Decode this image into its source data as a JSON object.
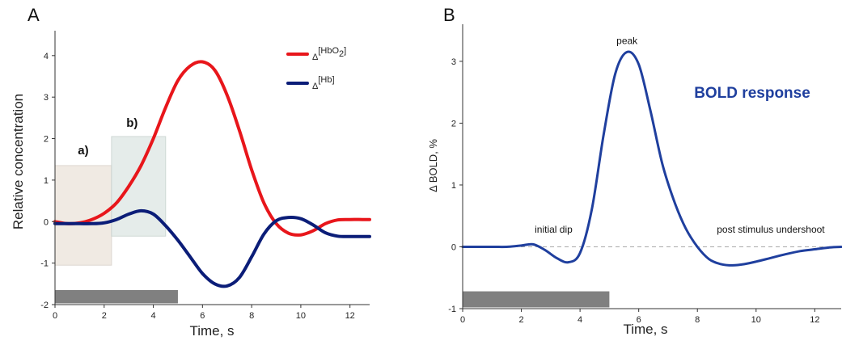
{
  "chart_data": [
    {
      "panel": "A",
      "type": "line",
      "xlabel": "Time, s",
      "ylabel": "Relative concentration",
      "xlim": [
        0,
        12.8
      ],
      "ylim": [
        -2,
        4.6
      ],
      "xticks": [
        0,
        2,
        4,
        6,
        8,
        10,
        12
      ],
      "yticks": [
        -2,
        -1,
        0,
        1,
        2,
        3,
        4
      ],
      "legend_position": "top-right",
      "series": [
        {
          "name": "Δ[HbO2]",
          "legend_main": "Δ",
          "legend_bracket_open": "[HbO",
          "legend_sub": "2",
          "legend_bracket_close": "]",
          "color": "#e8161b",
          "x": [
            0,
            0.5,
            1,
            1.5,
            2,
            2.5,
            3,
            3.5,
            4,
            4.5,
            5,
            5.5,
            6,
            6.5,
            7,
            7.5,
            8,
            8.5,
            9,
            9.5,
            10,
            10.5,
            11,
            11.5,
            12,
            12.5,
            12.8
          ],
          "y": [
            0,
            -0.05,
            -0.03,
            0.05,
            0.2,
            0.45,
            0.85,
            1.35,
            2.0,
            2.75,
            3.4,
            3.75,
            3.85,
            3.65,
            3.05,
            2.2,
            1.25,
            0.45,
            -0.05,
            -0.28,
            -0.32,
            -0.22,
            -0.05,
            0.04,
            0.05,
            0.05,
            0.05
          ]
        },
        {
          "name": "Δ[Hb]",
          "legend_main": "Δ",
          "legend_bracket_open": "[Hb",
          "legend_sub": "",
          "legend_bracket_close": "]",
          "color": "#0b1d78",
          "x": [
            0,
            0.5,
            1,
            1.5,
            2,
            2.5,
            3,
            3.5,
            4,
            4.5,
            5,
            5.5,
            6,
            6.5,
            7,
            7.5,
            8,
            8.5,
            9,
            9.5,
            10,
            10.5,
            11,
            11.5,
            12,
            12.5,
            12.8
          ],
          "y": [
            -0.05,
            -0.05,
            -0.05,
            -0.05,
            -0.03,
            0.05,
            0.18,
            0.26,
            0.18,
            -0.1,
            -0.45,
            -0.85,
            -1.25,
            -1.5,
            -1.55,
            -1.35,
            -0.85,
            -0.3,
            0.02,
            0.1,
            0.07,
            -0.08,
            -0.27,
            -0.35,
            -0.36,
            -0.36,
            -0.36
          ]
        }
      ],
      "regions": [
        {
          "label": "a)",
          "x": [
            0,
            2.3
          ],
          "y": [
            -1.05,
            1.35
          ],
          "fill": "#efe8e0",
          "stroke": "#d9d2cb"
        },
        {
          "label": "b)",
          "x": [
            2.3,
            4.5
          ],
          "y": [
            -0.35,
            2.05
          ],
          "fill": "#e3ebe8",
          "stroke": "#c9d4d0"
        }
      ],
      "stimulus": {
        "x": [
          0,
          5
        ],
        "y": [
          -1.97,
          -1.65
        ],
        "color": "#808080"
      }
    },
    {
      "panel": "B",
      "type": "line",
      "title": "BOLD response",
      "xlabel": "Time, s",
      "ylabel": "Δ BOLD, %",
      "xlim": [
        0,
        12.9
      ],
      "ylim": [
        -1,
        3.6
      ],
      "xticks": [
        0,
        2,
        4,
        6,
        8,
        10,
        12
      ],
      "yticks": [
        -1,
        0,
        1,
        2,
        3
      ],
      "baseline": 0,
      "series": [
        {
          "name": "BOLD response",
          "color": "#1f3f9e",
          "x": [
            0,
            1,
            1.5,
            2,
            2.4,
            2.8,
            3.2,
            3.6,
            4,
            4.4,
            4.8,
            5.2,
            5.6,
            6,
            6.4,
            6.8,
            7.2,
            7.6,
            8,
            8.4,
            8.8,
            9.2,
            9.6,
            10,
            10.5,
            11,
            11.5,
            12,
            12.5,
            12.9
          ],
          "y": [
            0,
            0,
            0,
            0.02,
            0.04,
            -0.05,
            -0.18,
            -0.25,
            -0.1,
            0.6,
            1.8,
            2.8,
            3.15,
            2.95,
            2.2,
            1.35,
            0.75,
            0.3,
            0.0,
            -0.2,
            -0.28,
            -0.3,
            -0.28,
            -0.24,
            -0.18,
            -0.12,
            -0.07,
            -0.04,
            -0.01,
            0
          ]
        }
      ],
      "annotations": [
        {
          "text": "peak",
          "x": 5.6,
          "y": 3.28
        },
        {
          "text": "initial dip",
          "x": 3.1,
          "y": 0.23
        },
        {
          "text": "post stimulus undershoot",
          "x": 10.5,
          "y": 0.23
        }
      ],
      "stimulus": {
        "x": [
          0,
          5
        ],
        "y": [
          -0.98,
          -0.72
        ],
        "color": "#808080"
      }
    }
  ]
}
